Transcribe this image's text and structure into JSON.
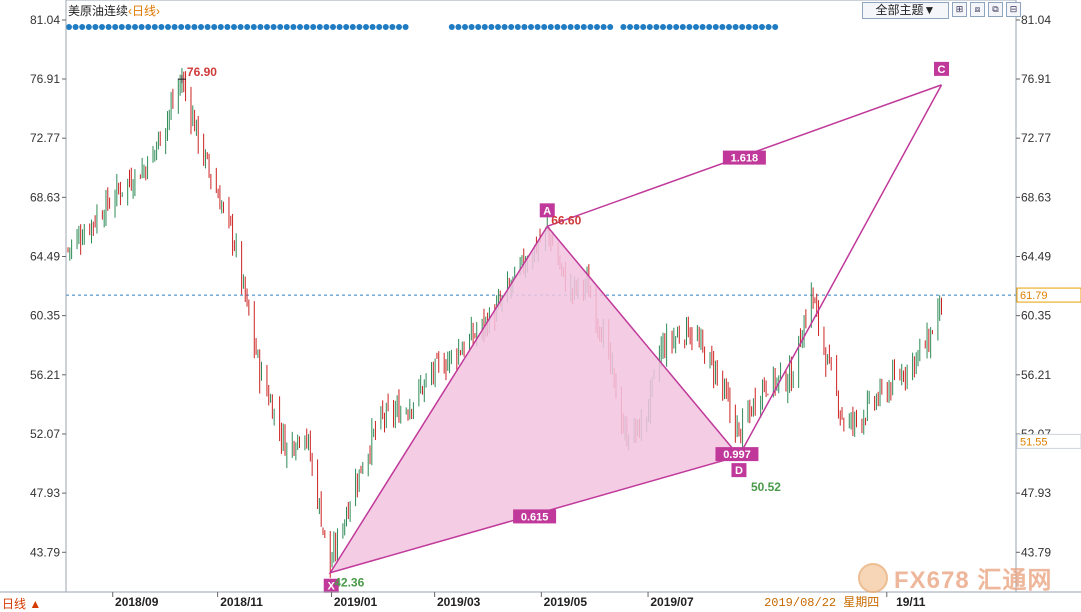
{
  "header": {
    "instrument": "美原油连续",
    "period_label": "‹日线›",
    "theme_button": "全部主题▼",
    "tools": [
      "⊞",
      "⧈",
      "⧉",
      "⊟"
    ]
  },
  "footer": {
    "period_switch": "日线 ▲",
    "crosshair_date": "2019/08/22  星期四"
  },
  "watermark": "FX678 汇通网",
  "colors": {
    "up": "#2e8b57",
    "down": "#cc2222",
    "pattern": "#c0399a",
    "pattern_fill": "#f2c4e0",
    "current_line": "#2f7fc1",
    "dots": "#1f7bc2"
  },
  "chart_data": {
    "type": "candlestick",
    "y_axis": {
      "ticks": [
        "81.04",
        "76.91",
        "72.77",
        "68.63",
        "64.49",
        "60.35",
        "56.21",
        "52.07",
        "47.93",
        "43.79"
      ],
      "min": 42.2,
      "max": 81.04
    },
    "x_axis": {
      "ticks": [
        "2018/09",
        "2018/11",
        "2019/01",
        "2019/03",
        "2019/05",
        "2019/07",
        "19/11"
      ]
    },
    "current_price": "61.79",
    "secondary_price": "51.55",
    "high_label": "76.90",
    "harmonic_pattern": {
      "points": [
        {
          "name": "X",
          "price": 42.36,
          "label": "42.36",
          "date": "2018/12/24"
        },
        {
          "name": "A",
          "price": 66.6,
          "label": "66.60",
          "date": "2019/04/23"
        },
        {
          "name": "D",
          "price": 50.52,
          "label": "50.52",
          "date": "2019/08/07"
        },
        {
          "name": "C",
          "price": 76.5,
          "label": "",
          "date": "2019/11/27"
        }
      ],
      "ratios": [
        "1.618",
        "0.615",
        "0.997"
      ]
    },
    "close_path": [
      [
        "2018/08/01",
        65.0
      ],
      [
        "2018/08/15",
        67.0
      ],
      [
        "2018/09/01",
        69.5
      ],
      [
        "2018/09/15",
        71.0
      ],
      [
        "2018/10/03",
        76.9
      ],
      [
        "2018/10/15",
        71.5
      ],
      [
        "2018/10/31",
        66.0
      ],
      [
        "2018/11/15",
        56.5
      ],
      [
        "2018/11/30",
        51.0
      ],
      [
        "2018/12/10",
        52.5
      ],
      [
        "2018/12/24",
        42.8
      ],
      [
        "2019/01/05",
        48.0
      ],
      [
        "2019/01/20",
        53.0
      ],
      [
        "2019/02/05",
        54.0
      ],
      [
        "2019/02/20",
        56.5
      ],
      [
        "2019/03/10",
        58.5
      ],
      [
        "2019/03/25",
        60.5
      ],
      [
        "2019/04/10",
        64.0
      ],
      [
        "2019/04/23",
        66.3
      ],
      [
        "2019/05/05",
        62.0
      ],
      [
        "2019/05/15",
        62.5
      ],
      [
        "2019/05/25",
        58.5
      ],
      [
        "2019/06/05",
        52.0
      ],
      [
        "2019/06/15",
        52.5
      ],
      [
        "2019/06/25",
        58.0
      ],
      [
        "2019/07/10",
        59.5
      ],
      [
        "2019/07/25",
        56.5
      ],
      [
        "2019/08/07",
        52.0
      ],
      [
        "2019/08/20",
        55.5
      ],
      [
        "2019/09/05",
        56.0
      ],
      [
        "2019/09/16",
        62.0
      ],
      [
        "2019/09/25",
        57.0
      ],
      [
        "2019/10/05",
        52.5
      ],
      [
        "2019/10/15",
        53.5
      ],
      [
        "2019/10/30",
        55.5
      ],
      [
        "2019/11/10",
        57.0
      ],
      [
        "2019/11/20",
        58.5
      ],
      [
        "2019/11/27",
        61.5
      ]
    ]
  }
}
